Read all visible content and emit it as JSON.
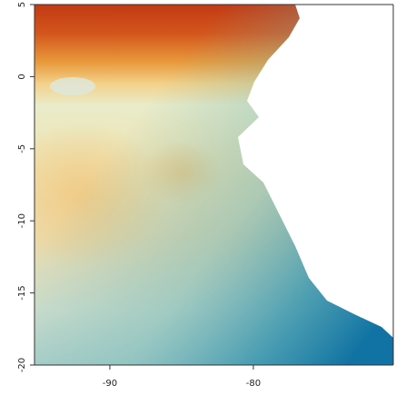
{
  "chart_data": {
    "type": "raster",
    "xlim": [
      -95.25,
      -70.25
    ],
    "ylim": [
      -20,
      5
    ],
    "xticks": [
      -90,
      -80
    ],
    "yticks": [
      5,
      0,
      -5,
      -10,
      -15,
      -20
    ]
  }
}
